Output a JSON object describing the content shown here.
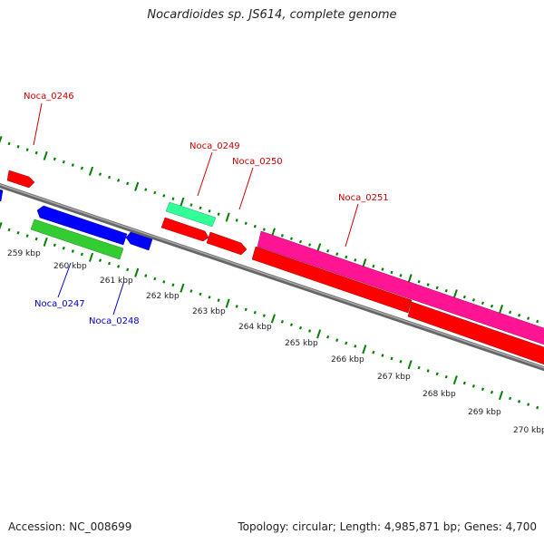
{
  "header": {
    "title": "Nocardioides sp. JS614, complete genome"
  },
  "footer": {
    "accession": "Accession: NC_008699",
    "topology": "Topology: circular; Length: 4,985,871 bp; Genes: 4,700"
  },
  "colors": {
    "backbone": "#808080",
    "ticks": "#008000",
    "label_plus": "#cc0000",
    "label_minus": "#0000cc",
    "feature_red": "#ff0000",
    "feature_blue": "#0000ff",
    "feature_green": "#33cc33",
    "feature_teal": "#33ff99",
    "feature_magenta": "#ff1493"
  },
  "scale_labels": [
    "259 kbp",
    "260 kbp",
    "261 kbp",
    "262 kbp",
    "263 kbp",
    "264 kbp",
    "265 kbp",
    "266 kbp",
    "267 kbp",
    "268 kbp",
    "269 kbp",
    "270 kbp"
  ],
  "gene_labels": [
    {
      "name": "Noca_0246",
      "strand": "plus"
    },
    {
      "name": "Noca_0249",
      "strand": "plus"
    },
    {
      "name": "Noca_0250",
      "strand": "plus"
    },
    {
      "name": "Noca_0251",
      "strand": "plus"
    },
    {
      "name": "Noca_0247",
      "strand": "minus"
    },
    {
      "name": "Noca_0248",
      "strand": "minus"
    }
  ]
}
